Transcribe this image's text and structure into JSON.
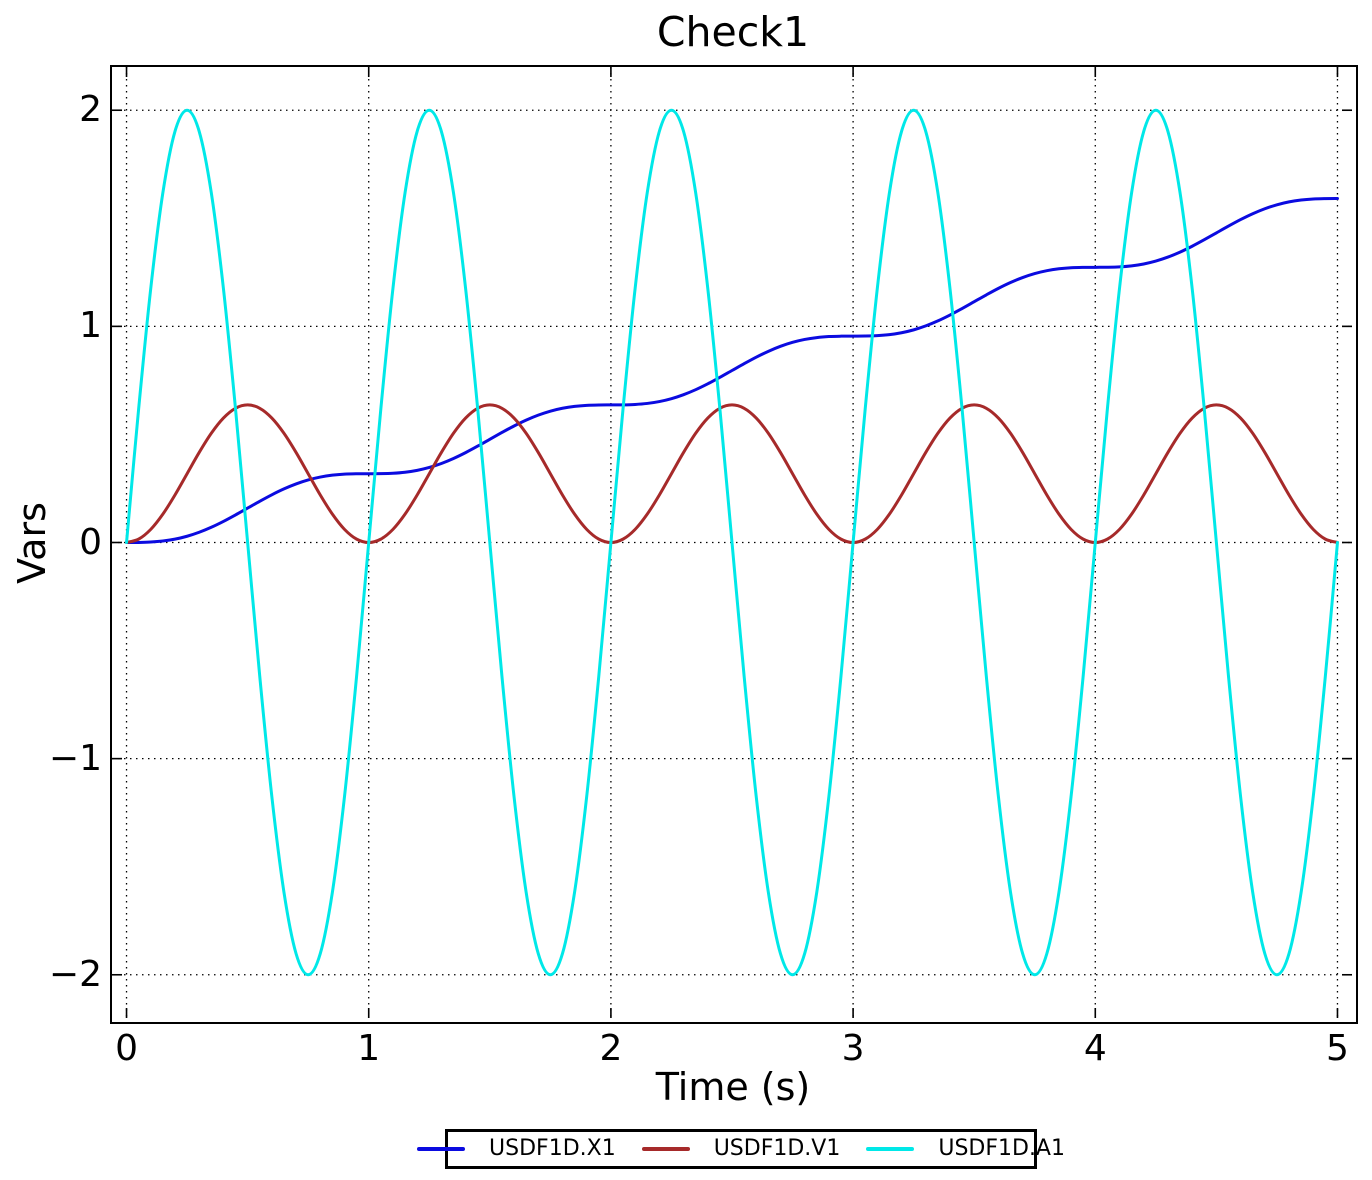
{
  "figure": {
    "background": "#ffffff",
    "text_color": "#000000",
    "grid_style": "dotted",
    "grid_color": "#000000",
    "legend_position": "bottom-center-outside"
  },
  "chart_data": {
    "type": "line",
    "title": "Check1",
    "xlabel": "Time (s)",
    "ylabel": "Vars",
    "xlim": [
      -0.06,
      5.06
    ],
    "ylim": [
      -2.2,
      2.2
    ],
    "grid": true,
    "x_ticks": [
      0,
      1,
      2,
      3,
      4,
      5
    ],
    "x_tick_labels": [
      "0",
      "1",
      "2",
      "3",
      "4",
      "5"
    ],
    "y_ticks": [
      -2,
      -1,
      0,
      1,
      2
    ],
    "y_tick_labels": [
      "−2",
      "−1",
      "0",
      "1",
      "2"
    ],
    "x": [
      0,
      0.05,
      0.1,
      0.15,
      0.2,
      0.25,
      0.3,
      0.35,
      0.4,
      0.45,
      0.5,
      0.55,
      0.6,
      0.65,
      0.7,
      0.75,
      0.8,
      0.85,
      0.9,
      0.95,
      1,
      1.05,
      1.1,
      1.15,
      1.2,
      1.25,
      1.3,
      1.35,
      1.4,
      1.45,
      1.5,
      1.55,
      1.6,
      1.65,
      1.7,
      1.75,
      1.8,
      1.85,
      1.9,
      1.95,
      2,
      2.05,
      2.1,
      2.15,
      2.2,
      2.25,
      2.3,
      2.35,
      2.4,
      2.45,
      2.5,
      2.55,
      2.6,
      2.65,
      2.7,
      2.75,
      2.8,
      2.85,
      2.9,
      2.95,
      3,
      3.05,
      3.1,
      3.15,
      3.2,
      3.25,
      3.3,
      3.35,
      3.4,
      3.45,
      3.5,
      3.55,
      3.6,
      3.65,
      3.7,
      3.75,
      3.8,
      3.85,
      3.9,
      3.95,
      4,
      4.05,
      4.1,
      4.15,
      4.2,
      4.25,
      4.3,
      4.35,
      4.4,
      4.45,
      4.5,
      4.55,
      4.6,
      4.65,
      4.7,
      4.75,
      4.8,
      4.85,
      4.9,
      4.95,
      5
    ],
    "series": [
      {
        "name": "USDF1D.X1",
        "color": "#0b0be0",
        "values": [
          0,
          0.0003,
          0.0021,
          0.0068,
          0.0155,
          0.0289,
          0.0473,
          0.0704,
          0.0975,
          0.1276,
          0.1592,
          0.1907,
          0.2208,
          0.2479,
          0.271,
          0.2894,
          0.3028,
          0.3115,
          0.3163,
          0.318,
          0.3183,
          0.3186,
          0.3204,
          0.3251,
          0.3338,
          0.3472,
          0.3656,
          0.3887,
          0.4158,
          0.4459,
          0.4775,
          0.509,
          0.5391,
          0.5662,
          0.5893,
          0.6077,
          0.6211,
          0.6298,
          0.6346,
          0.6363,
          0.6366,
          0.6369,
          0.6387,
          0.6434,
          0.6521,
          0.6655,
          0.6839,
          0.707,
          0.7341,
          0.7642,
          0.7958,
          0.8273,
          0.8574,
          0.8845,
          0.9076,
          0.926,
          0.9394,
          0.9481,
          0.9529,
          0.9546,
          0.9549,
          0.9552,
          0.957,
          0.9617,
          0.9704,
          0.9838,
          1.0022,
          1.0253,
          1.0524,
          1.0825,
          1.1141,
          1.1456,
          1.1757,
          1.2028,
          1.2259,
          1.2443,
          1.2577,
          1.2664,
          1.2712,
          1.2729,
          1.2732,
          1.2735,
          1.2753,
          1.28,
          1.2887,
          1.3021,
          1.3205,
          1.3436,
          1.3707,
          1.4008,
          1.4324,
          1.4639,
          1.494,
          1.5211,
          1.5442,
          1.5626,
          1.576,
          1.5847,
          1.5895,
          1.5912,
          1.5915
        ]
      },
      {
        "name": "USDF1D.V1",
        "color": "#a62a2a",
        "values": [
          0,
          0.0156,
          0.0608,
          0.1312,
          0.2199,
          0.3183,
          0.4167,
          0.5054,
          0.5758,
          0.621,
          0.6366,
          0.621,
          0.5758,
          0.5054,
          0.4167,
          0.3183,
          0.2199,
          0.1312,
          0.0608,
          0.0156,
          0,
          0.0156,
          0.0608,
          0.1312,
          0.2199,
          0.3183,
          0.4167,
          0.5054,
          0.5758,
          0.621,
          0.6366,
          0.621,
          0.5758,
          0.5054,
          0.4167,
          0.3183,
          0.2199,
          0.1312,
          0.0608,
          0.0156,
          0,
          0.0156,
          0.0608,
          0.1312,
          0.2199,
          0.3183,
          0.4167,
          0.5054,
          0.5758,
          0.621,
          0.6366,
          0.621,
          0.5758,
          0.5054,
          0.4167,
          0.3183,
          0.2199,
          0.1312,
          0.0608,
          0.0156,
          0,
          0.0156,
          0.0608,
          0.1312,
          0.2199,
          0.3183,
          0.4167,
          0.5054,
          0.5758,
          0.621,
          0.6366,
          0.621,
          0.5758,
          0.5054,
          0.4167,
          0.3183,
          0.2199,
          0.1312,
          0.0608,
          0.0156,
          0,
          0.0156,
          0.0608,
          0.1312,
          0.2199,
          0.3183,
          0.4167,
          0.5054,
          0.5758,
          0.621,
          0.6366,
          0.621,
          0.5758,
          0.5054,
          0.4167,
          0.3183,
          0.2199,
          0.1312,
          0.0608,
          0.0156,
          0
        ]
      },
      {
        "name": "USDF1D.A1",
        "color": "#00e8e8",
        "values": [
          0,
          0.618,
          1.1756,
          1.618,
          1.9021,
          2,
          1.9021,
          1.618,
          1.1756,
          0.618,
          0,
          -0.618,
          -1.1756,
          -1.618,
          -1.9021,
          -2,
          -1.9021,
          -1.618,
          -1.1756,
          -0.618,
          0,
          0.618,
          1.1756,
          1.618,
          1.9021,
          2,
          1.9021,
          1.618,
          1.1756,
          0.618,
          0,
          -0.618,
          -1.1756,
          -1.618,
          -1.9021,
          -2,
          -1.9021,
          -1.618,
          -1.1756,
          -0.618,
          0,
          0.618,
          1.1756,
          1.618,
          1.9021,
          2,
          1.9021,
          1.618,
          1.1756,
          0.618,
          0,
          -0.618,
          -1.1756,
          -1.618,
          -1.9021,
          -2,
          -1.9021,
          -1.618,
          -1.1756,
          -0.618,
          0,
          0.618,
          1.1756,
          1.618,
          1.9021,
          2,
          1.9021,
          1.618,
          1.1756,
          0.618,
          0,
          -0.618,
          -1.1756,
          -1.618,
          -1.9021,
          -2,
          -1.9021,
          -1.618,
          -1.1756,
          -0.618,
          0,
          0.618,
          1.1756,
          1.618,
          1.9021,
          2,
          1.9021,
          1.618,
          1.1756,
          0.618,
          0,
          -0.618,
          -1.1756,
          -1.618,
          -1.9021,
          -2,
          -1.9021,
          -1.618,
          -1.1756,
          -0.618,
          0
        ]
      }
    ]
  }
}
